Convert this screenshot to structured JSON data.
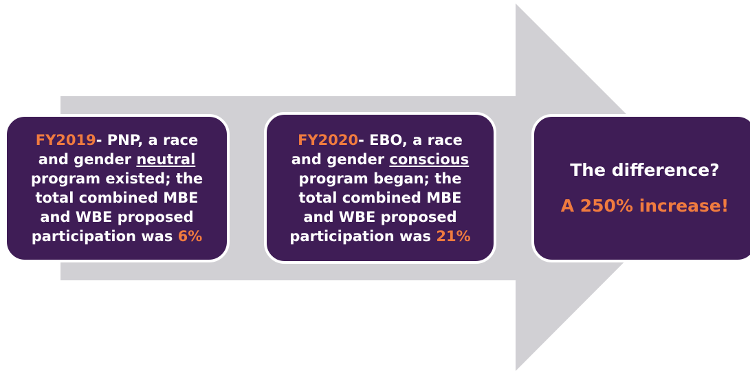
{
  "boxes": [
    {
      "lines": [
        [
          {
            "text": "FY2019",
            "accent": true
          },
          {
            "text": "- PNP, a race"
          }
        ],
        [
          {
            "text": "and gender "
          },
          {
            "text": "neutral",
            "underline": true
          }
        ],
        [
          {
            "text": "program existed; the"
          }
        ],
        [
          {
            "text": "total combined MBE"
          }
        ],
        [
          {
            "text": "and WBE proposed"
          }
        ],
        [
          {
            "text": "participation was "
          },
          {
            "text": "6%",
            "accent": true
          }
        ]
      ]
    },
    {
      "lines": [
        [
          {
            "text": "FY2020",
            "accent": true
          },
          {
            "text": "- EBO, a race"
          }
        ],
        [
          {
            "text": "and gender "
          },
          {
            "text": "conscious",
            "underline": true
          }
        ],
        [
          {
            "text": "program began; the"
          }
        ],
        [
          {
            "text": "total combined MBE"
          }
        ],
        [
          {
            "text": "and WBE proposed"
          }
        ],
        [
          {
            "text": "participation was "
          },
          {
            "text": "21%",
            "accent": true
          }
        ]
      ]
    },
    {
      "lines": [
        [
          {
            "text": "The difference?"
          }
        ],
        [
          {
            "text": "A 250% increase!",
            "accent": true
          }
        ]
      ]
    }
  ]
}
